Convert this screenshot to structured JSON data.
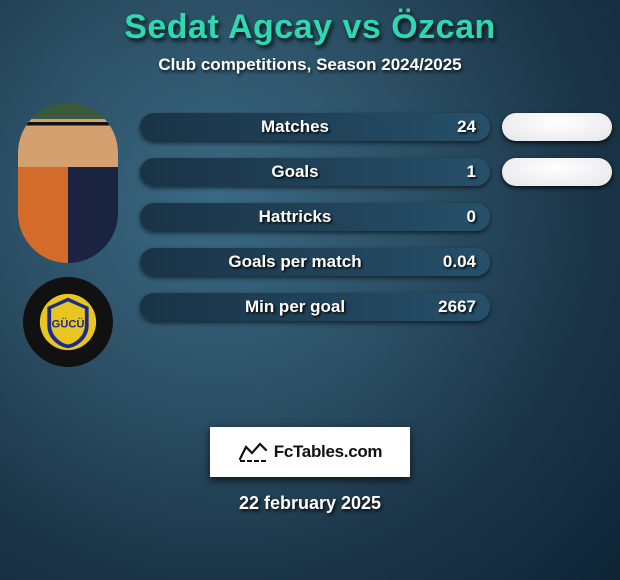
{
  "title": "Sedat Agcay vs Özcan",
  "subtitle": "Club competitions, Season 2024/2025",
  "stats": [
    {
      "label": "Matches",
      "value": "24",
      "barColor": "#1a3346",
      "gradTo": "#26506a",
      "p2value": "ellipse"
    },
    {
      "label": "Goals",
      "value": "1",
      "barColor": "#1a3346",
      "gradTo": "#26506a",
      "p2value": "ellipse"
    },
    {
      "label": "Hattricks",
      "value": "0",
      "barColor": "#1a3346",
      "gradTo": "#26506a",
      "p2value": "none"
    },
    {
      "label": "Goals per match",
      "value": "0.04",
      "barColor": "#1a3346",
      "gradTo": "#26506a",
      "p2value": "none"
    },
    {
      "label": "Min per goal",
      "value": "2667",
      "barColor": "#1a3346",
      "gradTo": "#26506a",
      "p2value": "none"
    }
  ],
  "pillColor": "#e6e6ea",
  "badge": {
    "outer": "#e8c520",
    "blue": "#1a2c8a",
    "text": "GÜCÜ"
  },
  "footer": {
    "brand": "FcTables.com"
  },
  "date": "22 february 2025",
  "colors": {
    "titleColor": "#2fd8b0",
    "barText": "#ffffff"
  }
}
